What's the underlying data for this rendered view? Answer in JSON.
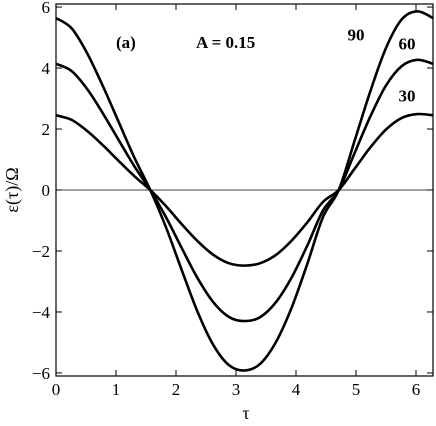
{
  "chart_data": {
    "type": "line",
    "title": "",
    "xlabel": "τ",
    "ylabel": "ε(τ)/Ω",
    "xlim": [
      0,
      6.2832
    ],
    "ylim": [
      -6.1,
      6.1
    ],
    "xticks": [
      0,
      1,
      2,
      3,
      4,
      5,
      6
    ],
    "yticks": [
      -6,
      -4,
      -2,
      0,
      2,
      4,
      6
    ],
    "xtick_labels": [
      "0",
      "1",
      "2",
      "3",
      "4",
      "5",
      "6"
    ],
    "ytick_labels": [
      "−6",
      "−4",
      "−2",
      "0",
      "2",
      "4",
      "6"
    ],
    "grid": false,
    "zero_line": true,
    "annotations": {
      "panel": "(a)",
      "parameter": "A = 0.15"
    },
    "series": [
      {
        "name": "90",
        "x": [
          0,
          0.2618,
          0.5236,
          0.7854,
          1.0472,
          1.309,
          1.5708,
          1.8326,
          2.0944,
          2.3562,
          2.618,
          2.8798,
          3.1416,
          3.4034,
          3.6652,
          3.927,
          4.1888,
          4.4506,
          4.7124,
          4.9742,
          5.236,
          5.4978,
          5.7596,
          6.0214,
          6.2832
        ],
        "values": [
          5.64,
          5.3,
          4.47,
          3.39,
          2.22,
          1.05,
          0.0,
          -1.22,
          -2.62,
          -3.98,
          -5.07,
          -5.74,
          -5.92,
          -5.7,
          -4.99,
          -3.86,
          -2.42,
          -0.88,
          0.0,
          1.6,
          3.22,
          4.65,
          5.59,
          5.86,
          5.64
        ]
      },
      {
        "name": "60",
        "x": [
          0,
          0.2618,
          0.5236,
          0.7854,
          1.0472,
          1.309,
          1.5708,
          1.8326,
          2.0944,
          2.3562,
          2.618,
          2.8798,
          3.1416,
          3.4034,
          3.6652,
          3.927,
          4.1888,
          4.4506,
          4.7124,
          4.9742,
          5.236,
          5.4978,
          5.7596,
          6.0214,
          6.2832
        ],
        "values": [
          4.14,
          3.9,
          3.3,
          2.5,
          1.63,
          0.77,
          0.0,
          -0.89,
          -1.9,
          -2.88,
          -3.67,
          -4.16,
          -4.3,
          -4.17,
          -3.68,
          -2.87,
          -1.82,
          -0.67,
          0.0,
          1.2,
          2.4,
          3.42,
          4.06,
          4.27,
          4.14
        ]
      },
      {
        "name": "30",
        "x": [
          0,
          0.2618,
          0.5236,
          0.7854,
          1.0472,
          1.309,
          1.5708,
          1.8326,
          2.0944,
          2.3562,
          2.618,
          2.8798,
          3.1416,
          3.4034,
          3.6652,
          3.927,
          4.1888,
          4.4506,
          4.7124,
          4.9742,
          5.236,
          5.4978,
          5.7596,
          6.0214,
          6.2832
        ],
        "values": [
          2.45,
          2.3,
          1.93,
          1.46,
          0.95,
          0.45,
          0.0,
          -0.53,
          -1.12,
          -1.67,
          -2.12,
          -2.4,
          -2.48,
          -2.4,
          -2.13,
          -1.66,
          -1.06,
          -0.39,
          0.0,
          0.69,
          1.39,
          1.98,
          2.36,
          2.49,
          2.45
        ]
      }
    ],
    "label_positions": [
      {
        "series": "90",
        "x": 5.0,
        "y": 4.9
      },
      {
        "series": "60",
        "x": 5.85,
        "y": 4.6
      },
      {
        "series": "30",
        "x": 5.85,
        "y": 2.9
      }
    ]
  }
}
